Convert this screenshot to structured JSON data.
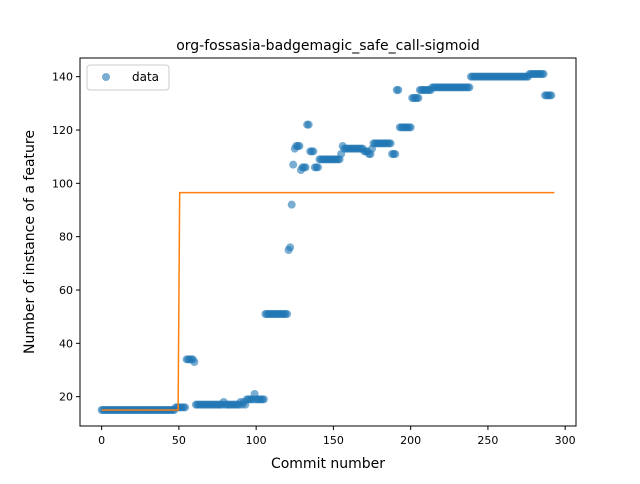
{
  "chart_data": {
    "type": "scatter",
    "title": "org-fossasia-badgemagic_safe_call-sigmoid",
    "xlabel": "Commit number",
    "ylabel": "Number of instance of a feature",
    "xlim": [
      -14,
      307
    ],
    "ylim": [
      9,
      147
    ],
    "xticks": [
      0,
      50,
      100,
      150,
      200,
      250,
      300
    ],
    "yticks": [
      20,
      40,
      60,
      80,
      100,
      120,
      140
    ],
    "grid": false,
    "legend": {
      "placement": "upper-left",
      "entries": [
        "data"
      ]
    },
    "colors": {
      "data": "#1f77b4",
      "fit": "#ff7f0e"
    },
    "series": [
      {
        "name": "data",
        "kind": "scatter",
        "points": [
          [
            0,
            15
          ],
          [
            1,
            15
          ],
          [
            2,
            15
          ],
          [
            3,
            15
          ],
          [
            4,
            15
          ],
          [
            5,
            15
          ],
          [
            6,
            15
          ],
          [
            7,
            15
          ],
          [
            8,
            15
          ],
          [
            9,
            15
          ],
          [
            10,
            15
          ],
          [
            11,
            15
          ],
          [
            12,
            15
          ],
          [
            13,
            15
          ],
          [
            14,
            15
          ],
          [
            15,
            15
          ],
          [
            16,
            15
          ],
          [
            17,
            15
          ],
          [
            18,
            15
          ],
          [
            19,
            15
          ],
          [
            20,
            15
          ],
          [
            21,
            15
          ],
          [
            22,
            15
          ],
          [
            23,
            15
          ],
          [
            24,
            15
          ],
          [
            25,
            15
          ],
          [
            26,
            15
          ],
          [
            27,
            15
          ],
          [
            28,
            15
          ],
          [
            29,
            15
          ],
          [
            30,
            15
          ],
          [
            31,
            15
          ],
          [
            32,
            15
          ],
          [
            33,
            15
          ],
          [
            34,
            15
          ],
          [
            35,
            15
          ],
          [
            36,
            15
          ],
          [
            37,
            15
          ],
          [
            38,
            15
          ],
          [
            39,
            15
          ],
          [
            40,
            15
          ],
          [
            41,
            15
          ],
          [
            42,
            15
          ],
          [
            43,
            15
          ],
          [
            44,
            15
          ],
          [
            45,
            15
          ],
          [
            46,
            15
          ],
          [
            47,
            15
          ],
          [
            48,
            16
          ],
          [
            49,
            16
          ],
          [
            50,
            16
          ],
          [
            51,
            16
          ],
          [
            52,
            16
          ],
          [
            53,
            16
          ],
          [
            54,
            16
          ],
          [
            55,
            34
          ],
          [
            56,
            34
          ],
          [
            57,
            34
          ],
          [
            58,
            34
          ],
          [
            59,
            34
          ],
          [
            60,
            33
          ],
          [
            61,
            17
          ],
          [
            62,
            17
          ],
          [
            63,
            17
          ],
          [
            64,
            17
          ],
          [
            65,
            17
          ],
          [
            66,
            17
          ],
          [
            67,
            17
          ],
          [
            68,
            17
          ],
          [
            69,
            17
          ],
          [
            70,
            17
          ],
          [
            71,
            17
          ],
          [
            72,
            17
          ],
          [
            73,
            17
          ],
          [
            74,
            17
          ],
          [
            75,
            17
          ],
          [
            76,
            17
          ],
          [
            77,
            17
          ],
          [
            78,
            17
          ],
          [
            79,
            18
          ],
          [
            80,
            17
          ],
          [
            81,
            17
          ],
          [
            82,
            17
          ],
          [
            83,
            17
          ],
          [
            84,
            17
          ],
          [
            85,
            17
          ],
          [
            86,
            17
          ],
          [
            87,
            17
          ],
          [
            88,
            17
          ],
          [
            89,
            17
          ],
          [
            90,
            18
          ],
          [
            91,
            17
          ],
          [
            92,
            18
          ],
          [
            93,
            17
          ],
          [
            94,
            19
          ],
          [
            95,
            19
          ],
          [
            96,
            19
          ],
          [
            97,
            19
          ],
          [
            98,
            19
          ],
          [
            99,
            21
          ],
          [
            100,
            19
          ],
          [
            101,
            19
          ],
          [
            102,
            19
          ],
          [
            103,
            19
          ],
          [
            104,
            19
          ],
          [
            105,
            19
          ],
          [
            106,
            51
          ],
          [
            107,
            51
          ],
          [
            108,
            51
          ],
          [
            109,
            51
          ],
          [
            110,
            51
          ],
          [
            111,
            51
          ],
          [
            112,
            51
          ],
          [
            113,
            51
          ],
          [
            114,
            51
          ],
          [
            115,
            51
          ],
          [
            116,
            51
          ],
          [
            117,
            51
          ],
          [
            118,
            51
          ],
          [
            119,
            51
          ],
          [
            120,
            51
          ],
          [
            121,
            75
          ],
          [
            122,
            76
          ],
          [
            123,
            92
          ],
          [
            124,
            107
          ],
          [
            125,
            113
          ],
          [
            126,
            114
          ],
          [
            127,
            114
          ],
          [
            128,
            114
          ],
          [
            129,
            105
          ],
          [
            130,
            106
          ],
          [
            131,
            106
          ],
          [
            132,
            106
          ],
          [
            133,
            122
          ],
          [
            134,
            122
          ],
          [
            135,
            112
          ],
          [
            136,
            112
          ],
          [
            137,
            112
          ],
          [
            138,
            106
          ],
          [
            139,
            106
          ],
          [
            140,
            106
          ],
          [
            141,
            109
          ],
          [
            142,
            109
          ],
          [
            143,
            109
          ],
          [
            144,
            109
          ],
          [
            145,
            109
          ],
          [
            146,
            109
          ],
          [
            147,
            109
          ],
          [
            148,
            109
          ],
          [
            149,
            109
          ],
          [
            150,
            109
          ],
          [
            151,
            109
          ],
          [
            152,
            109
          ],
          [
            153,
            109
          ],
          [
            154,
            109
          ],
          [
            155,
            111
          ],
          [
            156,
            114
          ],
          [
            157,
            113
          ],
          [
            158,
            113
          ],
          [
            159,
            113
          ],
          [
            160,
            113
          ],
          [
            161,
            113
          ],
          [
            162,
            113
          ],
          [
            163,
            113
          ],
          [
            164,
            113
          ],
          [
            165,
            113
          ],
          [
            166,
            113
          ],
          [
            167,
            113
          ],
          [
            168,
            113
          ],
          [
            169,
            113
          ],
          [
            170,
            112
          ],
          [
            171,
            112
          ],
          [
            172,
            112
          ],
          [
            173,
            111
          ],
          [
            174,
            111
          ],
          [
            175,
            113
          ],
          [
            176,
            115
          ],
          [
            177,
            115
          ],
          [
            178,
            115
          ],
          [
            179,
            115
          ],
          [
            180,
            115
          ],
          [
            181,
            115
          ],
          [
            182,
            115
          ],
          [
            183,
            115
          ],
          [
            184,
            115
          ],
          [
            185,
            115
          ],
          [
            186,
            115
          ],
          [
            187,
            115
          ],
          [
            188,
            111
          ],
          [
            189,
            111
          ],
          [
            190,
            111
          ],
          [
            191,
            135
          ],
          [
            192,
            135
          ],
          [
            193,
            121
          ],
          [
            194,
            121
          ],
          [
            195,
            121
          ],
          [
            196,
            121
          ],
          [
            197,
            121
          ],
          [
            198,
            121
          ],
          [
            199,
            121
          ],
          [
            200,
            121
          ],
          [
            201,
            132
          ],
          [
            202,
            132
          ],
          [
            203,
            132
          ],
          [
            204,
            132
          ],
          [
            205,
            132
          ],
          [
            206,
            135
          ],
          [
            207,
            135
          ],
          [
            208,
            135
          ],
          [
            209,
            135
          ],
          [
            210,
            135
          ],
          [
            211,
            135
          ],
          [
            212,
            135
          ],
          [
            213,
            135
          ],
          [
            214,
            136
          ],
          [
            215,
            136
          ],
          [
            216,
            136
          ],
          [
            217,
            136
          ],
          [
            218,
            136
          ],
          [
            219,
            136
          ],
          [
            220,
            136
          ],
          [
            221,
            136
          ],
          [
            222,
            136
          ],
          [
            223,
            136
          ],
          [
            224,
            136
          ],
          [
            225,
            136
          ],
          [
            226,
            136
          ],
          [
            227,
            136
          ],
          [
            228,
            136
          ],
          [
            229,
            136
          ],
          [
            230,
            136
          ],
          [
            231,
            136
          ],
          [
            232,
            136
          ],
          [
            233,
            136
          ],
          [
            234,
            136
          ],
          [
            235,
            136
          ],
          [
            236,
            136
          ],
          [
            237,
            136
          ],
          [
            238,
            136
          ],
          [
            239,
            140
          ],
          [
            240,
            140
          ],
          [
            241,
            140
          ],
          [
            242,
            140
          ],
          [
            243,
            140
          ],
          [
            244,
            140
          ],
          [
            245,
            140
          ],
          [
            246,
            140
          ],
          [
            247,
            140
          ],
          [
            248,
            140
          ],
          [
            249,
            140
          ],
          [
            250,
            140
          ],
          [
            251,
            140
          ],
          [
            252,
            140
          ],
          [
            253,
            140
          ],
          [
            254,
            140
          ],
          [
            255,
            140
          ],
          [
            256,
            140
          ],
          [
            257,
            140
          ],
          [
            258,
            140
          ],
          [
            259,
            140
          ],
          [
            260,
            140
          ],
          [
            261,
            140
          ],
          [
            262,
            140
          ],
          [
            263,
            140
          ],
          [
            264,
            140
          ],
          [
            265,
            140
          ],
          [
            266,
            140
          ],
          [
            267,
            140
          ],
          [
            268,
            140
          ],
          [
            269,
            140
          ],
          [
            270,
            140
          ],
          [
            271,
            140
          ],
          [
            272,
            140
          ],
          [
            273,
            140
          ],
          [
            274,
            140
          ],
          [
            275,
            140
          ],
          [
            276,
            140
          ],
          [
            277,
            141
          ],
          [
            278,
            141
          ],
          [
            279,
            141
          ],
          [
            280,
            141
          ],
          [
            281,
            141
          ],
          [
            282,
            141
          ],
          [
            283,
            141
          ],
          [
            284,
            141
          ],
          [
            285,
            141
          ],
          [
            286,
            141
          ],
          [
            287,
            133
          ],
          [
            288,
            133
          ],
          [
            289,
            133
          ],
          [
            290,
            133
          ],
          [
            291,
            133
          ]
        ]
      },
      {
        "kind": "line",
        "points": [
          [
            0,
            15
          ],
          [
            49.5,
            15
          ],
          [
            50.5,
            96.5
          ],
          [
            293,
            96.5
          ]
        ]
      }
    ]
  }
}
